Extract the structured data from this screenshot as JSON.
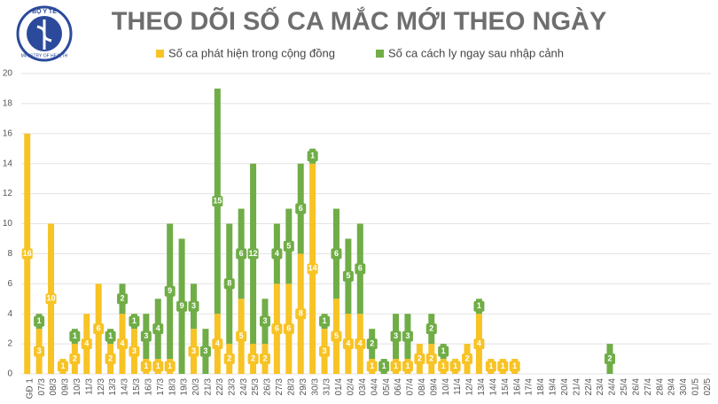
{
  "logo": {
    "top": "BỘ Y TẾ",
    "bottom": "MINISTRY OF HEALTH"
  },
  "chart_data": {
    "type": "stacked-bar",
    "title": "THEO DÕI SỐ CA MẮC MỚI THEO NGÀY",
    "categories": [
      "GĐ 1",
      "07/3",
      "08/3",
      "09/3",
      "10/3",
      "11/3",
      "12/3",
      "13/3",
      "14/3",
      "15/3",
      "16/3",
      "17/3",
      "18/3",
      "19/3",
      "20/3",
      "21/3",
      "22/3",
      "23/3",
      "24/3",
      "25/3",
      "26/3",
      "27/3",
      "28/3",
      "29/3",
      "30/3",
      "31/3",
      "01/4",
      "02/4",
      "03/4",
      "04/4",
      "05/4",
      "06/4",
      "07/4",
      "08/4",
      "09/4",
      "10/4",
      "11/4",
      "12/4",
      "13/4",
      "14/4",
      "15/4",
      "16/4",
      "17/4",
      "18/4",
      "19/4",
      "20/4",
      "21/4",
      "22/4",
      "23/4",
      "24/4",
      "25/4",
      "26/4",
      "27/4",
      "28/4",
      "29/4",
      "30/4",
      "01/5",
      "02/5"
    ],
    "series": [
      {
        "name": "Số ca phát hiện trong cộng đồng",
        "color": "#f7c325",
        "values": [
          16,
          3,
          10,
          1,
          2,
          4,
          6,
          2,
          4,
          3,
          1,
          1,
          1,
          0,
          3,
          0,
          4,
          2,
          5,
          2,
          2,
          6,
          6,
          8,
          14,
          3,
          5,
          4,
          4,
          1,
          0,
          1,
          1,
          2,
          2,
          1,
          1,
          2,
          4,
          1,
          1,
          1,
          0,
          0,
          0,
          0,
          0,
          0,
          0,
          0,
          0,
          0,
          0,
          0,
          0,
          0,
          0,
          0
        ]
      },
      {
        "name": "Số ca cách ly ngay sau nhập cảnh",
        "color": "#70ad47",
        "values": [
          0,
          1,
          0,
          0,
          1,
          0,
          0,
          1,
          2,
          1,
          3,
          4,
          9,
          9,
          3,
          3,
          15,
          8,
          6,
          12,
          3,
          4,
          5,
          6,
          1,
          1,
          6,
          5,
          6,
          2,
          1,
          3,
          3,
          0,
          2,
          1,
          0,
          0,
          1,
          0,
          0,
          0,
          0,
          0,
          0,
          0,
          0,
          0,
          0,
          2,
          0,
          0,
          0,
          0,
          0,
          0,
          0,
          0
        ]
      }
    ],
    "ylim": [
      0,
      20
    ],
    "yticks": [
      0,
      2,
      4,
      6,
      8,
      10,
      12,
      14,
      16,
      18,
      20
    ],
    "grid": true
  }
}
